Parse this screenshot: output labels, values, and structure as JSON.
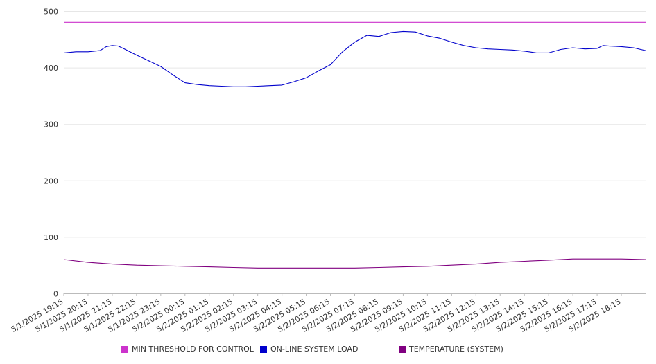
{
  "chart_data": {
    "type": "line",
    "y_axis": {
      "ylim": [
        0,
        500
      ],
      "ticks": [
        0,
        100,
        200,
        300,
        400,
        500
      ]
    },
    "x_axis": {
      "range": [
        "5/1/2025 19:15",
        "5/2/2025 19:15"
      ],
      "tick_labels": [
        "5/1/2025 19:15",
        "5/1/2025 20:15",
        "5/1/2025 21:15",
        "5/1/2025 22:15",
        "5/1/2025 23:15",
        "5/2/2025 00:15",
        "5/2/2025 01:15",
        "5/2/2025 02:15",
        "5/2/2025 03:15",
        "5/2/2025 04:15",
        "5/2/2025 05:15",
        "5/2/2025 06:15",
        "5/2/2025 07:15",
        "5/2/2025 08:15",
        "5/2/2025 09:15",
        "5/2/2025 10:15",
        "5/2/2025 11:15",
        "5/2/2025 12:15",
        "5/2/2025 13:15",
        "5/2/2025 14:15",
        "5/2/2025 15:15",
        "5/2/2025 16:15",
        "5/2/2025 17:15",
        "5/2/2025 18:15"
      ]
    },
    "grid": true,
    "legend_position": "bottom",
    "series": [
      {
        "name": "MIN THRESHOLD FOR CONTROL",
        "color": "#cc33cc",
        "points": [
          [
            "5/1/2025 19:15",
            480
          ],
          [
            "5/2/2025 19:15",
            480
          ]
        ]
      },
      {
        "name": "ON-LINE SYSTEM LOAD",
        "color": "#0000cc",
        "points": [
          [
            "5/1/2025 19:15",
            426
          ],
          [
            "5/1/2025 19:45",
            428
          ],
          [
            "5/1/2025 20:15",
            428
          ],
          [
            "5/1/2025 20:45",
            430
          ],
          [
            "5/1/2025 21:00",
            437
          ],
          [
            "5/1/2025 21:15",
            439
          ],
          [
            "5/1/2025 21:30",
            438
          ],
          [
            "5/1/2025 21:45",
            433
          ],
          [
            "5/1/2025 22:15",
            422
          ],
          [
            "5/1/2025 22:45",
            412
          ],
          [
            "5/1/2025 23:15",
            402
          ],
          [
            "5/1/2025 23:45",
            387
          ],
          [
            "5/2/2025 00:15",
            373
          ],
          [
            "5/2/2025 00:45",
            370
          ],
          [
            "5/2/2025 01:15",
            368
          ],
          [
            "5/2/2025 01:45",
            367
          ],
          [
            "5/2/2025 02:15",
            366
          ],
          [
            "5/2/2025 02:45",
            366
          ],
          [
            "5/2/2025 03:15",
            367
          ],
          [
            "5/2/2025 03:45",
            368
          ],
          [
            "5/2/2025 04:15",
            369
          ],
          [
            "5/2/2025 04:45",
            375
          ],
          [
            "5/2/2025 05:15",
            382
          ],
          [
            "5/2/2025 05:45",
            394
          ],
          [
            "5/2/2025 06:15",
            405
          ],
          [
            "5/2/2025 06:45",
            428
          ],
          [
            "5/2/2025 07:15",
            445
          ],
          [
            "5/2/2025 07:45",
            457
          ],
          [
            "5/2/2025 08:15",
            455
          ],
          [
            "5/2/2025 08:45",
            462
          ],
          [
            "5/2/2025 09:15",
            464
          ],
          [
            "5/2/2025 09:45",
            463
          ],
          [
            "5/2/2025 10:15",
            456
          ],
          [
            "5/2/2025 10:45",
            452
          ],
          [
            "5/2/2025 11:15",
            445
          ],
          [
            "5/2/2025 11:45",
            439
          ],
          [
            "5/2/2025 12:15",
            435
          ],
          [
            "5/2/2025 12:45",
            433
          ],
          [
            "5/2/2025 13:15",
            432
          ],
          [
            "5/2/2025 13:45",
            431
          ],
          [
            "5/2/2025 14:15",
            429
          ],
          [
            "5/2/2025 14:45",
            426
          ],
          [
            "5/2/2025 15:15",
            426
          ],
          [
            "5/2/2025 15:45",
            432
          ],
          [
            "5/2/2025 16:15",
            435
          ],
          [
            "5/2/2025 16:45",
            433
          ],
          [
            "5/2/2025 17:15",
            434
          ],
          [
            "5/2/2025 17:30",
            439
          ],
          [
            "5/2/2025 17:45",
            438
          ],
          [
            "5/2/2025 18:15",
            437
          ],
          [
            "5/2/2025 18:45",
            435
          ],
          [
            "5/2/2025 19:15",
            430
          ]
        ]
      },
      {
        "name": "TEMPERATURE (SYSTEM)",
        "color": "#800080",
        "points": [
          [
            "5/1/2025 19:15",
            60
          ],
          [
            "5/1/2025 20:15",
            55
          ],
          [
            "5/1/2025 21:15",
            52
          ],
          [
            "5/1/2025 22:15",
            50
          ],
          [
            "5/1/2025 23:15",
            49
          ],
          [
            "5/2/2025 00:15",
            48
          ],
          [
            "5/2/2025 01:15",
            47
          ],
          [
            "5/2/2025 02:15",
            46
          ],
          [
            "5/2/2025 03:15",
            45
          ],
          [
            "5/2/2025 04:15",
            45
          ],
          [
            "5/2/2025 05:15",
            45
          ],
          [
            "5/2/2025 06:15",
            45
          ],
          [
            "5/2/2025 07:15",
            45
          ],
          [
            "5/2/2025 08:15",
            46
          ],
          [
            "5/2/2025 09:15",
            47
          ],
          [
            "5/2/2025 10:15",
            48
          ],
          [
            "5/2/2025 11:15",
            50
          ],
          [
            "5/2/2025 12:15",
            52
          ],
          [
            "5/2/2025 13:15",
            55
          ],
          [
            "5/2/2025 14:15",
            57
          ],
          [
            "5/2/2025 15:15",
            59
          ],
          [
            "5/2/2025 16:15",
            61
          ],
          [
            "5/2/2025 17:15",
            61
          ],
          [
            "5/2/2025 18:15",
            61
          ],
          [
            "5/2/2025 19:15",
            60
          ]
        ]
      }
    ]
  }
}
